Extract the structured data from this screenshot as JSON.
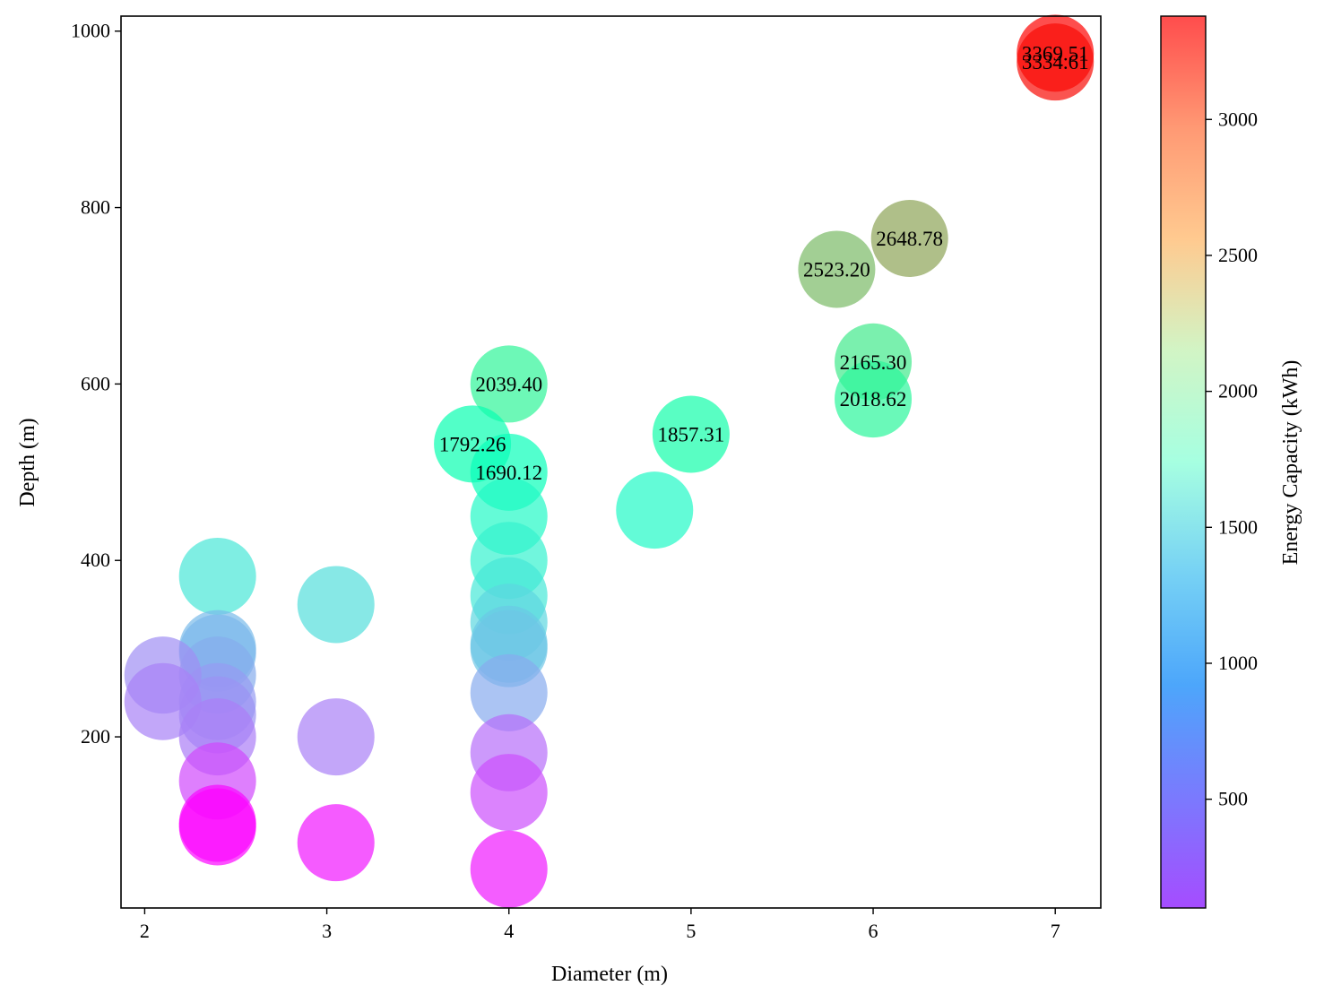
{
  "chart_data": {
    "type": "scatter",
    "xlabel": "Diameter (m)",
    "ylabel": "Depth (m)",
    "xlim": [
      1.87,
      7.25
    ],
    "ylim": [
      6,
      1017
    ],
    "xticks": [
      "2",
      "3",
      "4",
      "5",
      "6",
      "7"
    ],
    "yticks": [
      "200",
      "400",
      "600",
      "800",
      "1000"
    ],
    "colorbar": {
      "label": "Energy Capacity (kWh)",
      "colormap": "rainbow",
      "range": [
        100,
        3380
      ],
      "ticks": [
        "500",
        "1000",
        "1500",
        "2000",
        "2500",
        "3000"
      ]
    },
    "points": [
      {
        "x": 7.0,
        "y": 975,
        "energy": 3369.51,
        "label": "3369.51"
      },
      {
        "x": 7.0,
        "y": 965,
        "energy": 3334.61,
        "label": "3334.61"
      },
      {
        "x": 6.2,
        "y": 765,
        "energy": 2648.78,
        "label": "2648.78"
      },
      {
        "x": 5.8,
        "y": 730,
        "energy": 2523.2,
        "label": "2523.20"
      },
      {
        "x": 6.0,
        "y": 625,
        "energy": 2165.3,
        "label": "2165.30"
      },
      {
        "x": 6.0,
        "y": 583,
        "energy": 2018.62,
        "label": "2018.62"
      },
      {
        "x": 4.0,
        "y": 600,
        "energy": 2039.4,
        "label": "2039.40"
      },
      {
        "x": 5.0,
        "y": 543,
        "energy": 1857.31,
        "label": "1857.31"
      },
      {
        "x": 3.8,
        "y": 532,
        "energy": 1792.26,
        "label": "1792.26"
      },
      {
        "x": 4.0,
        "y": 500,
        "energy": 1690.12,
        "label": "1690.12"
      },
      {
        "x": 4.8,
        "y": 457,
        "energy": 1530
      },
      {
        "x": 4.0,
        "y": 450,
        "energy": 1520
      },
      {
        "x": 4.0,
        "y": 400,
        "energy": 1400
      },
      {
        "x": 4.0,
        "y": 360,
        "energy": 1290
      },
      {
        "x": 4.0,
        "y": 330,
        "energy": 1150
      },
      {
        "x": 4.0,
        "y": 305,
        "energy": 1050
      },
      {
        "x": 4.0,
        "y": 300,
        "energy": 1030
      },
      {
        "x": 4.0,
        "y": 250,
        "energy": 870
      },
      {
        "x": 4.0,
        "y": 182,
        "energy": 560
      },
      {
        "x": 4.0,
        "y": 137,
        "energy": 430
      },
      {
        "x": 4.0,
        "y": 50,
        "energy": 200
      },
      {
        "x": 3.05,
        "y": 350,
        "energy": 1200
      },
      {
        "x": 3.05,
        "y": 200,
        "energy": 650
      },
      {
        "x": 3.05,
        "y": 80,
        "energy": 190
      },
      {
        "x": 2.4,
        "y": 382,
        "energy": 1280
      },
      {
        "x": 2.4,
        "y": 300,
        "energy": 960
      },
      {
        "x": 2.4,
        "y": 295,
        "energy": 940
      },
      {
        "x": 2.4,
        "y": 270,
        "energy": 880
      },
      {
        "x": 2.4,
        "y": 240,
        "energy": 780
      },
      {
        "x": 2.4,
        "y": 225,
        "energy": 740
      },
      {
        "x": 2.4,
        "y": 200,
        "energy": 640
      },
      {
        "x": 2.4,
        "y": 150,
        "energy": 400
      },
      {
        "x": 2.4,
        "y": 102,
        "energy": 130
      },
      {
        "x": 2.4,
        "y": 98,
        "energy": 120
      },
      {
        "x": 2.1,
        "y": 270,
        "energy": 720
      },
      {
        "x": 2.1,
        "y": 240,
        "energy": 660
      }
    ]
  }
}
